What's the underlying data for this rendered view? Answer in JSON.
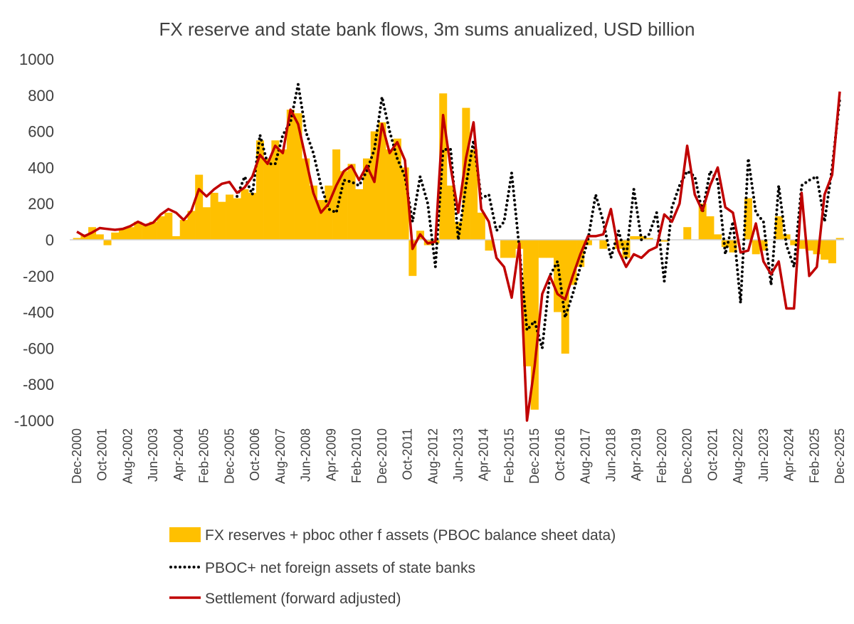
{
  "chart_data": {
    "type": "bar+line",
    "title": "FX reserve and state bank flows, 3m sums anualized, USD billion",
    "xlabel": "",
    "ylabel": "",
    "ylim": [
      -1000,
      1000
    ],
    "yticks": [
      1000,
      800,
      600,
      400,
      200,
      0,
      -200,
      -400,
      -600,
      -800,
      -1000
    ],
    "x_tick_labels": [
      "Dec-2000",
      "Oct-2001",
      "Aug-2002",
      "Jun-2003",
      "Apr-2004",
      "Feb-2005",
      "Dec-2005",
      "Oct-2006",
      "Aug-2007",
      "Jun-2008",
      "Apr-2009",
      "Feb-2010",
      "Dec-2010",
      "Oct-2011",
      "Aug-2012",
      "Jun-2013",
      "Apr-2014",
      "Feb-2015",
      "Dec-2015",
      "Oct-2016",
      "Aug-2017",
      "Jun-2018",
      "Apr-2019",
      "Feb-2020",
      "Dec-2020",
      "Oct-2021",
      "Aug-2022",
      "Jun-2023",
      "Apr-2024",
      "Feb-2025",
      "Dec-2025"
    ],
    "x_range": [
      "Dec-2000",
      "Dec-2025"
    ],
    "x_sampling": "quarterly from Dec-2000 (approximate readings)",
    "grid": false,
    "legend_position": "bottom",
    "series": [
      {
        "name": "FX reserves + pboc other f assets (PBOC balance sheet data)",
        "kind": "bar",
        "color": "#FFC000",
        "values": [
          10,
          30,
          70,
          30,
          -30,
          40,
          60,
          70,
          100,
          80,
          100,
          130,
          150,
          20,
          110,
          160,
          360,
          180,
          260,
          210,
          250,
          230,
          280,
          260,
          550,
          450,
          550,
          500,
          720,
          700,
          450,
          300,
          220,
          300,
          500,
          380,
          420,
          280,
          450,
          600,
          650,
          500,
          560,
          400,
          -200,
          50,
          -30,
          -20,
          810,
          300,
          100,
          730,
          500,
          150,
          -60,
          0,
          -100,
          -100,
          -50,
          -700,
          -940,
          -100,
          -100,
          -400,
          -630,
          -250,
          -150,
          -30,
          0,
          -50,
          0,
          -50,
          -100,
          20,
          20,
          10,
          0,
          -10,
          0,
          0,
          70,
          0,
          200,
          130,
          30,
          -40,
          -70,
          0,
          230,
          -80,
          -60,
          0,
          130,
          30,
          -30,
          -50,
          -60,
          -80,
          -110,
          -130,
          10
        ]
      },
      {
        "name": "PBOC+ net foreign assets of state banks",
        "kind": "line-dotted",
        "color": "#000000",
        "values": [
          null,
          null,
          null,
          null,
          null,
          null,
          null,
          null,
          null,
          null,
          null,
          null,
          null,
          null,
          null,
          null,
          null,
          null,
          null,
          null,
          null,
          240,
          350,
          250,
          580,
          420,
          420,
          580,
          650,
          860,
          600,
          480,
          300,
          170,
          150,
          330,
          320,
          300,
          380,
          500,
          790,
          600,
          450,
          350,
          100,
          350,
          200,
          -150,
          500,
          500,
          0,
          300,
          550,
          230,
          250,
          50,
          100,
          370,
          -50,
          -500,
          -450,
          -600,
          -200,
          -120,
          -430,
          -300,
          -150,
          0,
          250,
          100,
          -100,
          50,
          -100,
          280,
          0,
          30,
          150,
          -230,
          180,
          300,
          380,
          350,
          150,
          380,
          330,
          -80,
          100,
          -350,
          450,
          150,
          100,
          -250,
          300,
          -30,
          -150,
          300,
          330,
          350,
          100,
          400,
          780
        ]
      },
      {
        "name": "Settlement (forward adjusted)",
        "kind": "line",
        "color": "#C00000",
        "values": [
          45,
          20,
          40,
          65,
          60,
          55,
          60,
          75,
          100,
          80,
          95,
          140,
          170,
          150,
          110,
          160,
          280,
          240,
          280,
          310,
          320,
          260,
          290,
          350,
          470,
          420,
          520,
          480,
          720,
          640,
          450,
          260,
          150,
          200,
          300,
          380,
          410,
          330,
          410,
          320,
          640,
          480,
          540,
          440,
          -50,
          30,
          -20,
          -10,
          690,
          400,
          150,
          450,
          650,
          170,
          100,
          -100,
          -150,
          -320,
          -20,
          -1000,
          -700,
          -300,
          -200,
          -300,
          -330,
          -200,
          -80,
          20,
          20,
          30,
          170,
          -60,
          -150,
          -80,
          -100,
          -60,
          -40,
          140,
          100,
          200,
          520,
          250,
          160,
          300,
          400,
          180,
          150,
          -70,
          -60,
          90,
          -120,
          -190,
          -120,
          -380,
          -380,
          260,
          -200,
          -150,
          250,
          360,
          820
        ]
      }
    ]
  }
}
